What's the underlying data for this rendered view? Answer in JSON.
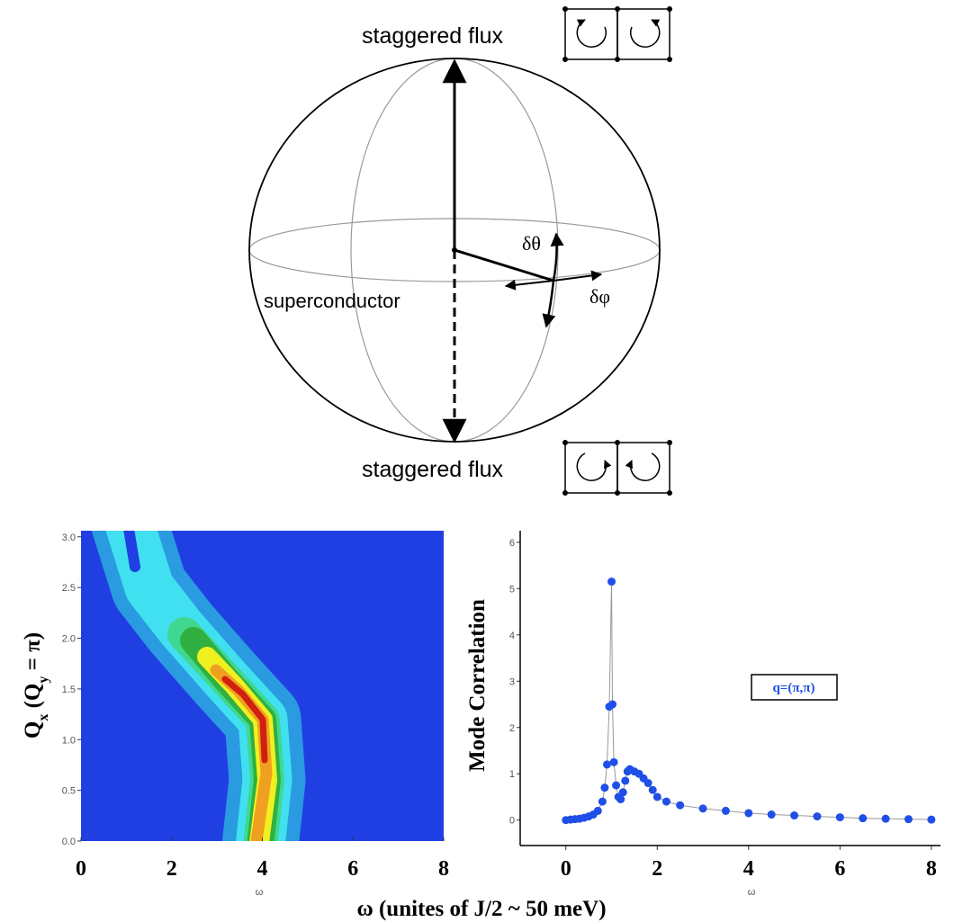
{
  "diagram": {
    "top_label": "staggered flux",
    "bottom_label": "staggered flux",
    "equator_label": "superconductor",
    "theta_label": "δθ",
    "phi_label": "δφ"
  },
  "figure_xlabel": "ω (unites of J/2 ~ 50 meV)",
  "chart_data": [
    {
      "type": "contour",
      "xlabel": "ω",
      "ylabel_parts": [
        "Q",
        "x",
        " (Q",
        "y",
        " = π)"
      ],
      "xlim": [
        0,
        8
      ],
      "ylim": [
        0,
        3.06
      ],
      "xticks": [
        0,
        2,
        4,
        6,
        8
      ],
      "yticks": [
        {
          "value": 0,
          "label": "0.0"
        },
        {
          "value": 0.5,
          "label": "0.5"
        },
        {
          "value": 1,
          "label": "1.0"
        },
        {
          "value": 1.5,
          "label": "1.5"
        },
        {
          "value": 2,
          "label": "2.0"
        },
        {
          "value": 2.5,
          "label": "2.5"
        },
        {
          "value": 3,
          "label": "3.0"
        }
      ]
    },
    {
      "type": "scatter",
      "xlabel": "ω",
      "ylabel": "Mode Correlation",
      "xlim": [
        -1.0,
        8.2
      ],
      "ylim": [
        -0.55,
        6.25
      ],
      "xticks": [
        0,
        2,
        4,
        6,
        8
      ],
      "yticks": [
        0,
        1,
        2,
        3,
        4,
        5,
        6
      ],
      "series": [
        {
          "name": "q=(π,π)",
          "color": "#1f4fe6",
          "x": [
            0,
            0.1,
            0.2,
            0.3,
            0.4,
            0.5,
            0.6,
            0.7,
            0.8,
            0.85,
            0.9,
            0.95,
            1.0,
            1.02,
            1.05,
            1.1,
            1.15,
            1.2,
            1.25,
            1.3,
            1.35,
            1.4,
            1.5,
            1.6,
            1.7,
            1.8,
            1.9,
            2.0,
            2.2,
            2.5,
            3,
            3.5,
            4,
            4.5,
            5,
            5.5,
            6,
            6.5,
            7,
            7.5,
            8
          ],
          "values": [
            0,
            0.01,
            0.02,
            0.03,
            0.05,
            0.08,
            0.12,
            0.2,
            0.4,
            0.7,
            1.2,
            2.45,
            5.15,
            2.5,
            1.25,
            0.75,
            0.5,
            0.45,
            0.6,
            0.85,
            1.05,
            1.1,
            1.05,
            1.0,
            0.9,
            0.8,
            0.65,
            0.5,
            0.4,
            0.32,
            0.25,
            0.2,
            0.15,
            0.12,
            0.1,
            0.08,
            0.06,
            0.04,
            0.03,
            0.02,
            0.01
          ]
        }
      ]
    }
  ]
}
